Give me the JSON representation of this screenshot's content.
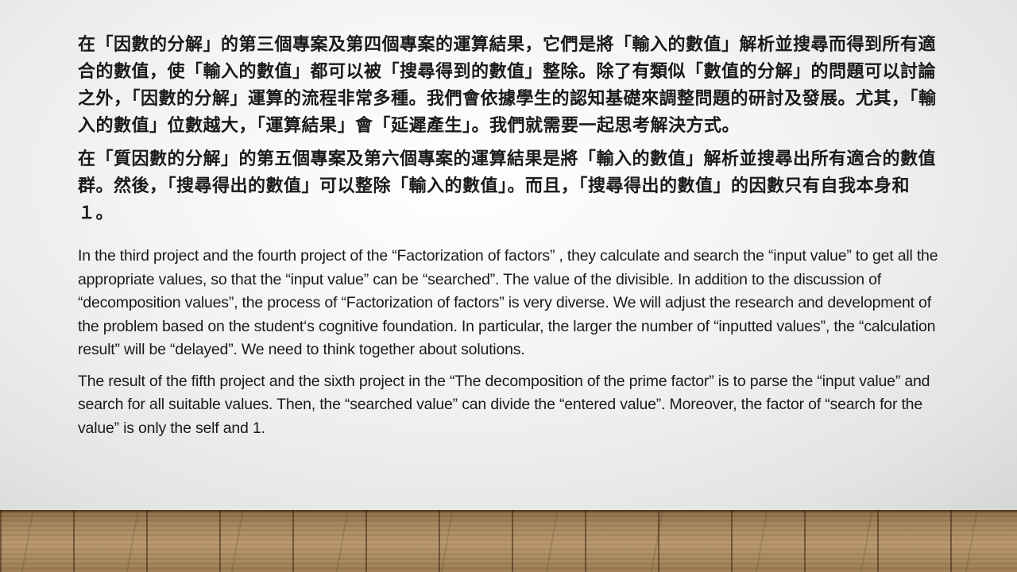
{
  "slide": {
    "paragraphs_zh": [
      "在「因數的分解」的第三個專案及第四個專案的運算結果，它們是將「輸入的數值」解析並搜尋而得到所有適合的數值，使「輸入的數值」都可以被「搜尋得到的數值」整除。除了有類似「數值的分解」的問題可以討論之外，「因數的分解」運算的流程非常多種。我們會依據學生的認知基礎來調整問題的研討及發展。尤其，「輸入的數值」位數越大，「運算結果」會「延遲產生」。我們就需要一起思考解決方式。",
      "在「質因數的分解」的第五個專案及第六個專案的運算結果是將「輸入的數值」解析並搜尋出所有適合的數值群。然後，「搜尋得出的數值」可以整除「輸入的數值」。而且，「搜尋得出的數值」的因數只有自我本身和１。"
    ],
    "paragraphs_en": [
      "In the third project and the fourth project of the “Factorization of factors” , they calculate and search the “input value” to get all the appropriate values, so that the “input value” can be “searched”. The value of the divisible. In addition to the discussion of “decomposition values”, the process of “Factorization of factors”  is very diverse. We will adjust the research and development of the problem based on the student‘s cognitive foundation. In particular, the larger the number of “inputted values”, the “calculation result” will be “delayed”. We need to think together about solutions.",
      "The result of the fifth project and the sixth project in the “The decomposition of the prime factor”  is to parse the “input value” and search for all suitable values. Then, the “searched value” can divide the “entered value”. Moreover, the factor of “search for the value” is only the self and 1."
    ]
  }
}
